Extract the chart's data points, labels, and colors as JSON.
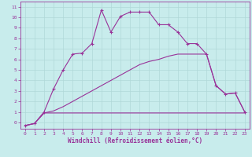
{
  "xlabel": "Windchill (Refroidissement éolien,°C)",
  "background_color": "#c8ecec",
  "grid_color": "#b0d8d8",
  "line_color": "#993399",
  "xlim": [
    -0.5,
    23.5
  ],
  "ylim": [
    -0.6,
    11.5
  ],
  "xticks": [
    0,
    1,
    2,
    3,
    4,
    5,
    6,
    7,
    8,
    9,
    10,
    11,
    12,
    13,
    14,
    15,
    16,
    17,
    18,
    19,
    20,
    21,
    22,
    23
  ],
  "yticks": [
    0,
    1,
    2,
    3,
    4,
    5,
    6,
    7,
    8,
    9,
    10,
    11
  ],
  "line1_x": [
    0,
    1,
    2,
    3,
    4,
    5,
    6,
    7,
    8,
    9,
    10,
    11,
    12,
    13,
    14,
    15,
    16,
    17,
    18,
    19,
    20,
    21,
    22,
    23
  ],
  "line1_y": [
    -0.3,
    -0.1,
    1.0,
    3.2,
    5.0,
    6.5,
    6.6,
    7.5,
    10.7,
    8.6,
    10.1,
    10.5,
    10.5,
    10.5,
    9.3,
    9.3,
    8.6,
    7.5,
    7.5,
    6.5,
    3.5,
    2.7,
    2.8,
    1.0
  ],
  "line2_x": [
    0,
    1,
    2,
    3,
    4,
    5,
    6,
    7,
    8,
    9,
    10,
    11,
    12,
    13,
    14,
    15,
    16,
    17,
    18,
    19,
    20,
    21,
    22,
    23
  ],
  "line2_y": [
    -0.3,
    -0.1,
    0.9,
    0.9,
    0.9,
    0.9,
    0.9,
    0.9,
    0.9,
    0.9,
    0.9,
    0.9,
    0.9,
    0.9,
    0.9,
    0.9,
    0.9,
    0.9,
    0.9,
    0.9,
    0.9,
    0.9,
    0.9,
    0.9
  ],
  "line3_x": [
    0,
    1,
    2,
    3,
    4,
    5,
    6,
    7,
    8,
    9,
    10,
    11,
    12,
    13,
    14,
    15,
    16,
    17,
    18,
    19,
    20,
    21,
    22,
    23
  ],
  "line3_y": [
    -0.3,
    -0.1,
    0.9,
    1.1,
    1.5,
    2.0,
    2.5,
    3.0,
    3.5,
    4.0,
    4.5,
    5.0,
    5.5,
    5.8,
    6.0,
    6.3,
    6.5,
    6.5,
    6.5,
    6.5,
    3.5,
    2.7,
    2.8,
    1.0
  ],
  "xlabel_fontsize": 5.5,
  "tick_fontsize": 4.5
}
